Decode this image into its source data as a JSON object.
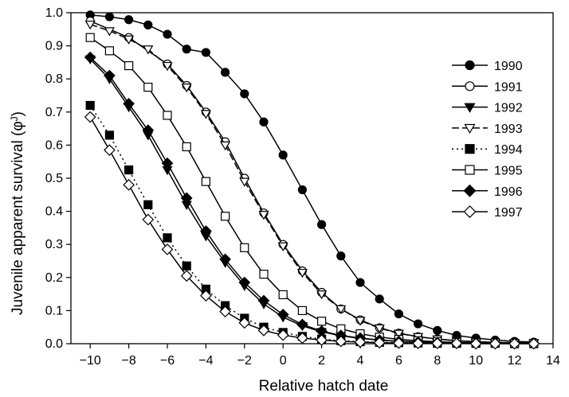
{
  "chart_data": {
    "type": "line",
    "xlabel": "Relative hatch date",
    "ylabel": "Juvenile apparent survival (φ",
    "ylabel_sup": "J",
    "ylabel_close": ")",
    "xlim": [
      -11,
      14
    ],
    "ylim": [
      0,
      1.0
    ],
    "xticks": [
      -10,
      -8,
      -6,
      -4,
      -2,
      0,
      2,
      4,
      6,
      8,
      10,
      12,
      14
    ],
    "xtick_labels": [
      "−10",
      "−8",
      "−6",
      "−4",
      "−2",
      "0",
      "2",
      "4",
      "6",
      "8",
      "10",
      "12",
      "14"
    ],
    "yticks": [
      0,
      0.1,
      0.2,
      0.3,
      0.4,
      0.5,
      0.6,
      0.7,
      0.8,
      0.9,
      1.0
    ],
    "ytick_labels": [
      "0.0",
      "0.1",
      "0.2",
      "0.3",
      "0.4",
      "0.5",
      "0.6",
      "0.7",
      "0.8",
      "0.9",
      "1.0"
    ],
    "grid": false,
    "legend_position": "right",
    "series": [
      {
        "name": "1990",
        "marker": "circle-filled",
        "line": "solid",
        "x": [
          -10,
          -9,
          -8,
          -7,
          -6,
          -5,
          -4,
          -3,
          -2,
          -1,
          0,
          1,
          2,
          3,
          4,
          5,
          6,
          7,
          8,
          9,
          10,
          11,
          12,
          13
        ],
        "y": [
          0.993,
          0.988,
          0.979,
          0.963,
          0.935,
          0.89,
          0.88,
          0.82,
          0.755,
          0.67,
          0.57,
          0.465,
          0.36,
          0.265,
          0.185,
          0.135,
          0.09,
          0.06,
          0.04,
          0.025,
          0.017,
          0.011,
          0.007,
          0.005
        ]
      },
      {
        "name": "1991",
        "marker": "circle-open",
        "line": "solid",
        "x": [
          -10,
          -8,
          -6,
          -5,
          -4,
          -3,
          -2,
          -1,
          0,
          1,
          2,
          3,
          4,
          5,
          6,
          7,
          8,
          9,
          10,
          11,
          12,
          13
        ],
        "y": [
          0.975,
          0.925,
          0.845,
          0.78,
          0.7,
          0.61,
          0.5,
          0.395,
          0.3,
          0.22,
          0.155,
          0.105,
          0.072,
          0.048,
          0.032,
          0.021,
          0.014,
          0.009,
          0.006,
          0.004,
          0.003,
          0.002
        ]
      },
      {
        "name": "1992",
        "marker": "triangle-down-filled",
        "line": "solid",
        "x": [
          -10,
          -9,
          -8,
          -7,
          -6,
          -5,
          -4,
          -3,
          -2,
          -1,
          0,
          1,
          2,
          3,
          4,
          5,
          6,
          7,
          8,
          9,
          10,
          11,
          12,
          13
        ],
        "y": [
          0.86,
          0.8,
          0.715,
          0.63,
          0.525,
          0.42,
          0.325,
          0.245,
          0.175,
          0.12,
          0.08,
          0.054,
          0.036,
          0.024,
          0.016,
          0.011,
          0.007,
          0.005,
          0.003,
          0.002,
          0.002,
          0.001,
          0.001,
          0.001
        ]
      },
      {
        "name": "1993",
        "marker": "triangle-down-open",
        "line": "dash",
        "x": [
          -10,
          -9,
          -8,
          -7,
          -6,
          -5,
          -4,
          -3,
          -2,
          -1,
          0,
          1,
          2,
          3,
          4,
          5,
          6,
          7,
          8,
          9,
          10,
          11,
          12,
          13
        ],
        "y": [
          0.965,
          0.945,
          0.92,
          0.89,
          0.84,
          0.775,
          0.695,
          0.6,
          0.49,
          0.39,
          0.295,
          0.215,
          0.15,
          0.105,
          0.07,
          0.047,
          0.031,
          0.021,
          0.014,
          0.009,
          0.006,
          0.004,
          0.003,
          0.002
        ]
      },
      {
        "name": "1994",
        "marker": "square-filled",
        "line": "dot",
        "x": [
          -10,
          -9,
          -8,
          -7,
          -6,
          -5,
          -4,
          -3,
          -2,
          -1,
          0,
          1,
          2,
          3,
          4,
          5,
          6,
          7,
          8,
          9,
          10,
          11,
          12,
          13
        ],
        "y": [
          0.72,
          0.63,
          0.525,
          0.42,
          0.32,
          0.235,
          0.165,
          0.115,
          0.077,
          0.05,
          0.034,
          0.022,
          0.014,
          0.009,
          0.006,
          0.004,
          0.003,
          0.002,
          0.001,
          0.001,
          0.001,
          0.001,
          0.0,
          0.0
        ]
      },
      {
        "name": "1995",
        "marker": "square-open",
        "line": "solid",
        "x": [
          -10,
          -9,
          -8,
          -7,
          -6,
          -5,
          -4,
          -3,
          -2,
          -1,
          0,
          1,
          2,
          3,
          4,
          5,
          6,
          7,
          8,
          9,
          10,
          11,
          12,
          13
        ],
        "y": [
          0.925,
          0.885,
          0.84,
          0.775,
          0.69,
          0.595,
          0.49,
          0.385,
          0.29,
          0.21,
          0.148,
          0.1,
          0.068,
          0.045,
          0.03,
          0.02,
          0.013,
          0.009,
          0.006,
          0.004,
          0.003,
          0.002,
          0.001,
          0.001
        ]
      },
      {
        "name": "1996",
        "marker": "diamond-filled",
        "line": "solid",
        "x": [
          -10,
          -9,
          -8,
          -7,
          -6,
          -5,
          -4,
          -3,
          -2,
          -1,
          0,
          1,
          2,
          3,
          4,
          5,
          6,
          7,
          8,
          9,
          10,
          11,
          12,
          13
        ],
        "y": [
          0.865,
          0.81,
          0.725,
          0.645,
          0.545,
          0.44,
          0.34,
          0.255,
          0.185,
          0.13,
          0.088,
          0.058,
          0.038,
          0.025,
          0.017,
          0.011,
          0.007,
          0.005,
          0.003,
          0.002,
          0.002,
          0.001,
          0.001,
          0.001
        ]
      },
      {
        "name": "1997",
        "marker": "diamond-open",
        "line": "solid",
        "x": [
          -10,
          -9,
          -8,
          -7,
          -6,
          -5,
          -4,
          -3,
          -2,
          -1,
          0,
          1,
          2,
          3,
          4,
          5,
          6,
          7,
          8,
          9,
          10,
          11,
          12,
          13
        ],
        "y": [
          0.685,
          0.585,
          0.48,
          0.375,
          0.285,
          0.205,
          0.145,
          0.097,
          0.063,
          0.04,
          0.026,
          0.017,
          0.011,
          0.007,
          0.005,
          0.003,
          0.002,
          0.001,
          0.001,
          0.001,
          0.0,
          0.0,
          0.0,
          0.0
        ]
      }
    ]
  }
}
